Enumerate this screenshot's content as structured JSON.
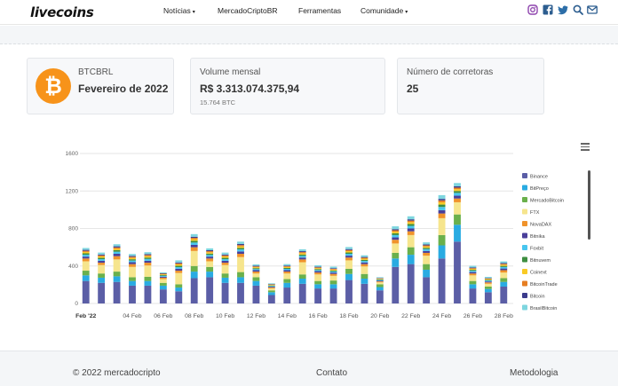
{
  "header": {
    "logo": "livecoins",
    "nav": [
      {
        "label": "Notícias",
        "caret": "▾"
      },
      {
        "label": "MercadoCriptoBR",
        "caret": ""
      },
      {
        "label": "Ferramentas",
        "caret": ""
      },
      {
        "label": "Comunidade",
        "caret": "▾"
      }
    ],
    "social": [
      "instagram-icon",
      "facebook-icon",
      "twitter-icon",
      "search-icon",
      "mail-icon"
    ],
    "social_color": "#8e44ad"
  },
  "cards": {
    "pair": {
      "label": "BTCBRL",
      "value": "Fevereiro de 2022",
      "icon": "₿"
    },
    "volume": {
      "label": "Volume mensal",
      "value": "R$ 3.313.074.375,94",
      "sub": "15.764 BTC"
    },
    "exchanges": {
      "label": "Número de corretoras",
      "value": "25"
    }
  },
  "chart_data": {
    "type": "bar",
    "stacked": true,
    "ylim": [
      0,
      1600
    ],
    "yticks": [
      "0",
      "400",
      "800",
      "1200",
      "1600"
    ],
    "categories": [
      "01 Feb",
      "02 Feb",
      "03 Feb",
      "04 Feb",
      "05 Feb",
      "06 Feb",
      "07 Feb",
      "08 Feb",
      "09 Feb",
      "10 Feb",
      "11 Feb",
      "12 Feb",
      "13 Feb",
      "14 Feb",
      "15 Feb",
      "16 Feb",
      "17 Feb",
      "18 Feb",
      "19 Feb",
      "20 Feb",
      "21 Feb",
      "22 Feb",
      "23 Feb",
      "24 Feb",
      "25 Feb",
      "26 Feb",
      "27 Feb",
      "28 Feb"
    ],
    "xticks": [
      "Feb '22",
      "04 Feb",
      "06 Feb",
      "08 Feb",
      "10 Feb",
      "12 Feb",
      "14 Feb",
      "16 Feb",
      "18 Feb",
      "20 Feb",
      "22 Feb",
      "24 Feb",
      "26 Feb",
      "28 Feb"
    ],
    "series": [
      {
        "name": "Binance",
        "color": "#5b5ea6",
        "values": [
          240,
          220,
          230,
          190,
          190,
          150,
          130,
          270,
          280,
          220,
          220,
          190,
          90,
          170,
          210,
          160,
          160,
          250,
          210,
          140,
          390,
          420,
          280,
          480,
          660,
          160,
          120,
          180
        ]
      },
      {
        "name": "BitPreço",
        "color": "#29abe2",
        "values": [
          60,
          55,
          60,
          50,
          50,
          40,
          40,
          70,
          60,
          55,
          60,
          50,
          30,
          50,
          55,
          45,
          45,
          65,
          55,
          35,
          90,
          100,
          80,
          140,
          180,
          45,
          35,
          50
        ]
      },
      {
        "name": "MercadoBitcoin",
        "color": "#6ab04c",
        "values": [
          50,
          45,
          50,
          40,
          45,
          30,
          35,
          60,
          50,
          45,
          55,
          40,
          20,
          40,
          45,
          35,
          40,
          55,
          50,
          30,
          60,
          80,
          60,
          110,
          110,
          35,
          25,
          40
        ]
      },
      {
        "name": "FTX",
        "color": "#f6e58d",
        "values": [
          100,
          90,
          130,
          110,
          120,
          40,
          120,
          160,
          60,
          90,
          160,
          40,
          20,
          60,
          130,
          70,
          50,
          90,
          80,
          20,
          100,
          130,
          90,
          180,
          130,
          60,
          30,
          60
        ]
      },
      {
        "name": "NovaDAX",
        "color": "#f0932b",
        "values": [
          30,
          25,
          35,
          30,
          30,
          15,
          25,
          40,
          30,
          25,
          35,
          20,
          10,
          20,
          30,
          20,
          20,
          30,
          25,
          10,
          40,
          40,
          30,
          50,
          40,
          20,
          15,
          25
        ]
      },
      {
        "name": "Bitnika",
        "color": "#4a3f9a",
        "values": [
          20,
          20,
          25,
          20,
          20,
          10,
          20,
          25,
          20,
          20,
          25,
          15,
          8,
          15,
          20,
          15,
          15,
          20,
          18,
          8,
          25,
          30,
          20,
          35,
          30,
          15,
          10,
          18
        ]
      },
      {
        "name": "Foxbit",
        "color": "#48c6ef",
        "values": [
          20,
          18,
          22,
          18,
          20,
          10,
          18,
          25,
          18,
          18,
          22,
          12,
          8,
          14,
          18,
          12,
          12,
          20,
          16,
          8,
          25,
          28,
          20,
          35,
          30,
          14,
          10,
          16
        ]
      },
      {
        "name": "Bitnuvem",
        "color": "#3e8e41",
        "values": [
          15,
          14,
          16,
          14,
          15,
          8,
          14,
          18,
          14,
          14,
          16,
          10,
          6,
          10,
          14,
          10,
          10,
          14,
          12,
          6,
          18,
          20,
          14,
          25,
          20,
          10,
          8,
          12
        ]
      },
      {
        "name": "Coinext",
        "color": "#f9ca24",
        "values": [
          15,
          14,
          16,
          14,
          15,
          8,
          14,
          18,
          14,
          14,
          16,
          10,
          6,
          10,
          14,
          10,
          10,
          14,
          12,
          6,
          18,
          20,
          14,
          25,
          20,
          10,
          8,
          12
        ]
      },
      {
        "name": "BitcoinTrade",
        "color": "#e67e22",
        "values": [
          12,
          12,
          14,
          12,
          12,
          6,
          12,
          14,
          12,
          12,
          14,
          8,
          5,
          8,
          12,
          8,
          8,
          12,
          10,
          5,
          15,
          16,
          12,
          20,
          16,
          8,
          6,
          10
        ]
      },
      {
        "name": "Bitcoin",
        "color": "#3c3c8c",
        "values": [
          10,
          10,
          12,
          10,
          10,
          5,
          10,
          12,
          10,
          10,
          12,
          7,
          4,
          7,
          10,
          7,
          7,
          10,
          8,
          4,
          12,
          14,
          10,
          16,
          14,
          7,
          5,
          8
        ]
      },
      {
        "name": "BrasilBitcoin",
        "color": "#7ed6df",
        "values": [
          20,
          20,
          22,
          20,
          20,
          10,
          22,
          28,
          20,
          20,
          25,
          15,
          8,
          16,
          20,
          16,
          16,
          22,
          18,
          8,
          30,
          32,
          22,
          40,
          35,
          18,
          12,
          18
        ]
      }
    ]
  }
}
